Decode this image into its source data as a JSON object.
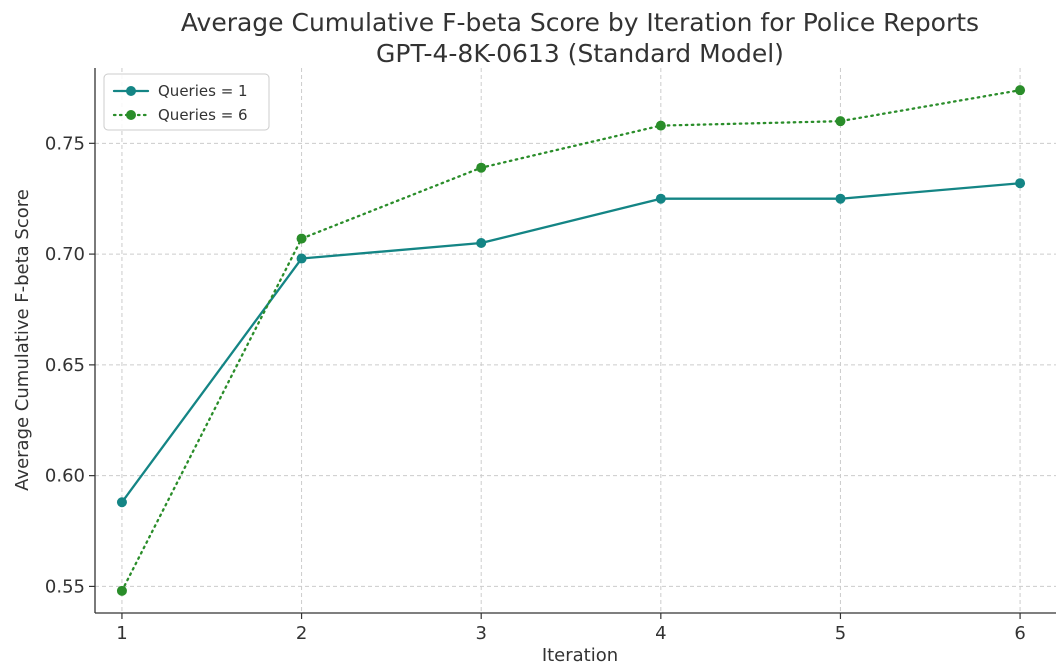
{
  "chart_data": {
    "type": "line",
    "title": [
      "Average Cumulative F-beta Score by Iteration for Police Reports",
      "GPT-4-8K-0613 (Standard Model)"
    ],
    "xlabel": "Iteration",
    "ylabel": "Average Cumulative F-beta Score",
    "x": [
      1,
      2,
      3,
      4,
      5,
      6
    ],
    "xticks": [
      "1",
      "2",
      "3",
      "4",
      "5",
      "6"
    ],
    "xlim": [
      0.85,
      6.2
    ],
    "yticks": [
      0.55,
      0.6,
      0.65,
      0.7,
      0.75
    ],
    "ytick_labels": [
      "0.55",
      "0.60",
      "0.65",
      "0.70",
      "0.75"
    ],
    "ylim": [
      0.538,
      0.784
    ],
    "grid": true,
    "legend_position": "top-left",
    "series": [
      {
        "name": "Queries = 1",
        "values": [
          0.588,
          0.698,
          0.705,
          0.725,
          0.725,
          0.732
        ],
        "color": "#148585",
        "line_style": "solid",
        "marker": "circle"
      },
      {
        "name": "Queries = 6",
        "values": [
          0.548,
          0.707,
          0.739,
          0.758,
          0.76,
          0.774
        ],
        "color": "#2a8d2a",
        "line_style": "dotted",
        "marker": "circle"
      }
    ]
  }
}
